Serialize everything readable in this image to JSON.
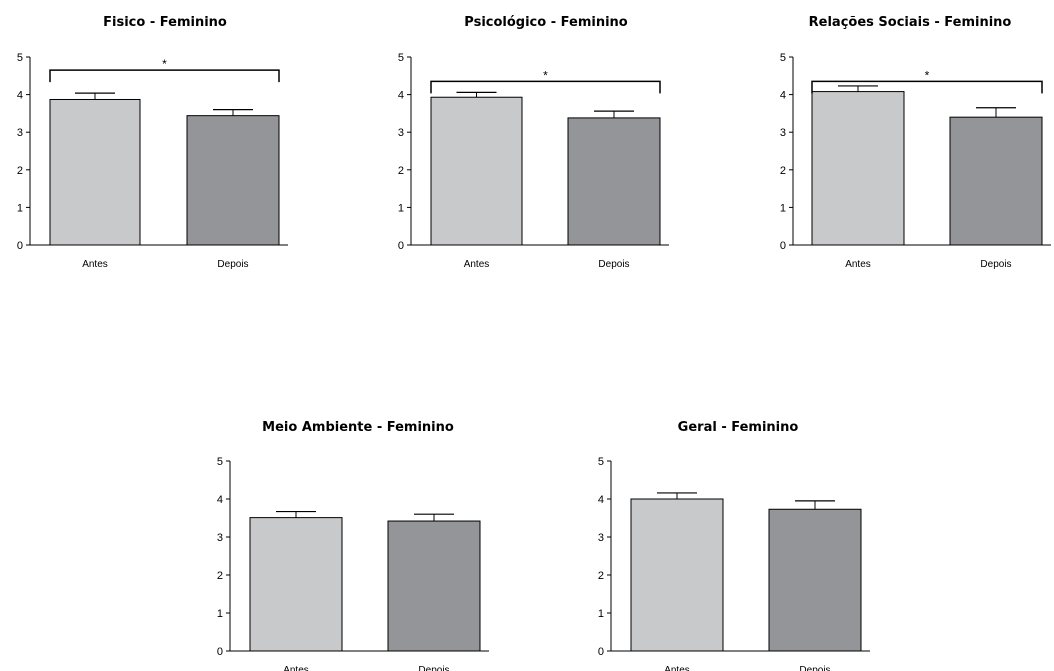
{
  "chart_data": [
    {
      "type": "bar",
      "title": "Fisico - Feminino",
      "categories": [
        "Antes",
        "Depois"
      ],
      "values": [
        3.87,
        3.44
      ],
      "errors": [
        0.17,
        0.16
      ],
      "colors": [
        "#c8c9cb",
        "#939598"
      ],
      "ylim": [
        0,
        5
      ],
      "yticks": [
        "0",
        "1",
        "2",
        "3",
        "4",
        "5"
      ],
      "xlabel": "",
      "ylabel": "",
      "significance": {
        "label": "*",
        "pairs": [
          0,
          1
        ],
        "level": 4.97
      }
    },
    {
      "type": "bar",
      "title": "Psicológico - Feminino",
      "categories": [
        "Antes",
        "Depois"
      ],
      "values": [
        3.93,
        3.38
      ],
      "errors": [
        0.13,
        0.18
      ],
      "colors": [
        "#c8c9cb",
        "#939598"
      ],
      "ylim": [
        0,
        5
      ],
      "yticks": [
        "0",
        "1",
        "2",
        "3",
        "4",
        "5"
      ],
      "xlabel": "",
      "ylabel": "",
      "significance": {
        "label": "*",
        "pairs": [
          0,
          1
        ],
        "level": 4.67
      }
    },
    {
      "type": "bar",
      "title": "Relações Sociais - Feminino",
      "categories": [
        "Antes",
        "Depois"
      ],
      "values": [
        4.08,
        3.4
      ],
      "errors": [
        0.15,
        0.25
      ],
      "colors": [
        "#c8c9cb",
        "#939598"
      ],
      "ylim": [
        0,
        5
      ],
      "yticks": [
        "0",
        "1",
        "2",
        "3",
        "4",
        "5"
      ],
      "xlabel": "",
      "ylabel": "",
      "significance": {
        "label": "*",
        "pairs": [
          0,
          1
        ],
        "level": 4.67
      }
    },
    {
      "type": "bar",
      "title": "Meio Ambiente - Feminino",
      "categories": [
        "Antes",
        "Depois"
      ],
      "values": [
        3.51,
        3.42
      ],
      "errors": [
        0.16,
        0.18
      ],
      "colors": [
        "#c8c9cb",
        "#939598"
      ],
      "ylim": [
        0,
        5
      ],
      "yticks": [
        "0",
        "1",
        "2",
        "3",
        "4",
        "5"
      ],
      "xlabel": "",
      "ylabel": ""
    },
    {
      "type": "bar",
      "title": "Geral - Feminino",
      "categories": [
        "Antes",
        "Depois"
      ],
      "values": [
        4.0,
        3.73
      ],
      "errors": [
        0.16,
        0.22
      ],
      "colors": [
        "#c8c9cb",
        "#939598"
      ],
      "ylim": [
        0,
        5
      ],
      "yticks": [
        "0",
        "1",
        "2",
        "3",
        "4",
        "5"
      ],
      "xlabel": "",
      "ylabel": ""
    }
  ]
}
